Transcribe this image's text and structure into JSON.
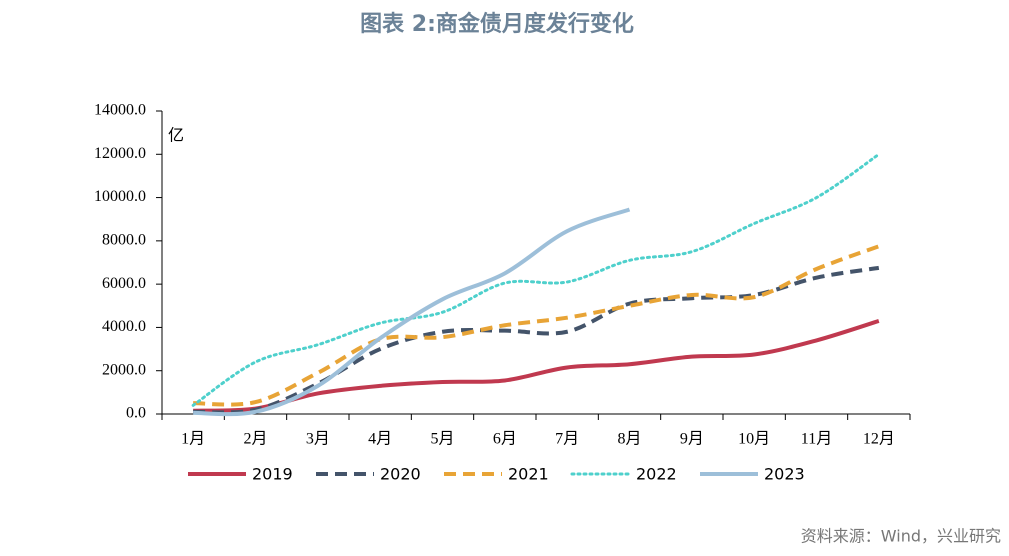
{
  "chart_data": {
    "type": "line",
    "title": "图表 2:商金债月度发行变化",
    "y_unit": "亿",
    "source": "资料来源：Wind，兴业研究",
    "categories": [
      "1月",
      "2月",
      "3月",
      "4月",
      "5月",
      "6月",
      "7月",
      "8月",
      "9月",
      "10月",
      "11月",
      "12月"
    ],
    "ylim": [
      0,
      14000
    ],
    "yticks": [
      {
        "value": 0,
        "label": "0.0"
      },
      {
        "value": 2000,
        "label": "2000.0"
      },
      {
        "value": 4000,
        "label": "4000.0"
      },
      {
        "value": 6000,
        "label": "6000.0"
      },
      {
        "value": 8000,
        "label": "8000.0"
      },
      {
        "value": 10000,
        "label": "10000.0"
      },
      {
        "value": 12000,
        "label": "12000.0"
      },
      {
        "value": 14000,
        "label": "14000.0"
      }
    ],
    "legend": "bottom",
    "series": [
      {
        "name": "2019",
        "color": "#c0394f",
        "dash": "solid",
        "values": [
          150,
          250,
          950,
          1300,
          1480,
          1550,
          2150,
          2300,
          2650,
          2750,
          3400,
          4300
        ]
      },
      {
        "name": "2020",
        "color": "#44546a",
        "dash": "dashed",
        "values": [
          100,
          200,
          1400,
          3000,
          3800,
          3850,
          3800,
          5100,
          5350,
          5500,
          6300,
          6750
        ]
      },
      {
        "name": "2021",
        "color": "#e8a436",
        "dash": "dashed",
        "values": [
          500,
          550,
          1900,
          3450,
          3550,
          4100,
          4450,
          5000,
          5500,
          5400,
          6700,
          7750
        ]
      },
      {
        "name": "2022",
        "color": "#4ed0cc",
        "dash": "dotted",
        "values": [
          400,
          2400,
          3200,
          4200,
          4700,
          6050,
          6100,
          7100,
          7500,
          8800,
          10000,
          12000
        ]
      },
      {
        "name": "2023",
        "color": "#9dbfd9",
        "dash": "solid",
        "values": [
          50,
          100,
          1300,
          3500,
          5300,
          6500,
          8450,
          9450,
          null,
          null,
          null,
          null
        ]
      }
    ]
  }
}
